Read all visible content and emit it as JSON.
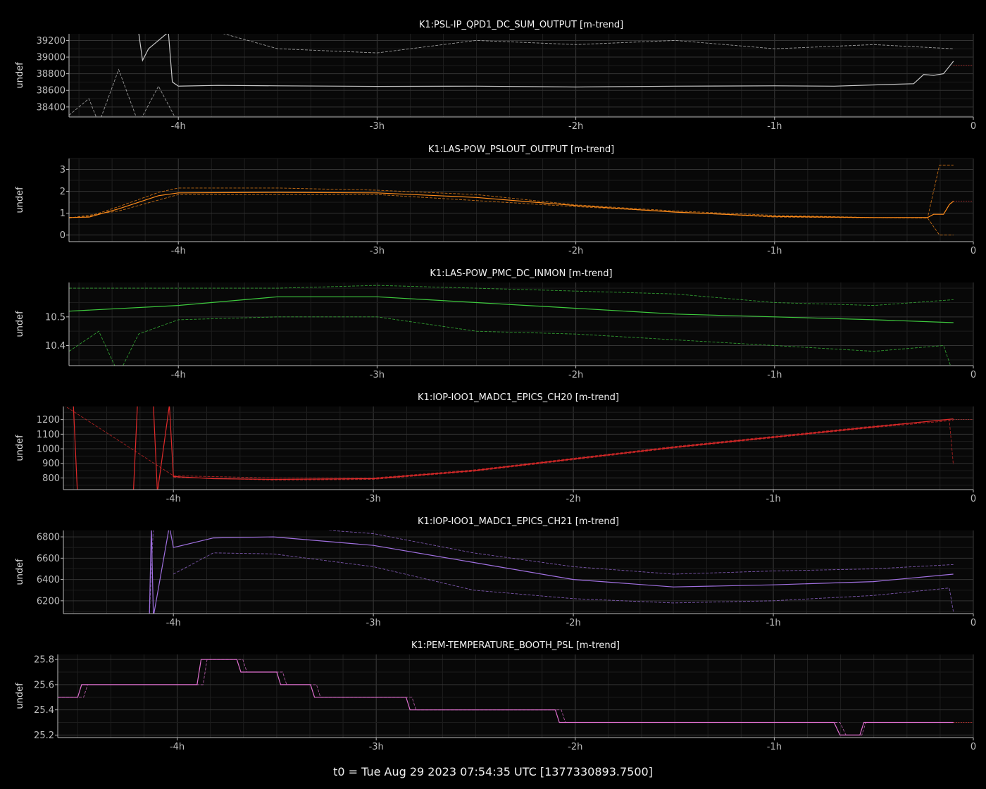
{
  "footer": "t0 = Tue Aug 29 2023 07:54:35 UTC [1377330893.7500]",
  "chart_data": [
    {
      "type": "line",
      "title": "K1:PSL-IP_QPD1_DC_SUM_OUTPUT [m-trend]",
      "ylabel": "undef",
      "color": "#c8c8c8",
      "x_ticks": [
        "-4h",
        "-3h",
        "-2h",
        "-1h",
        "0"
      ],
      "xlim": [
        -4.55,
        0
      ],
      "ylim": [
        38280,
        39280
      ],
      "y_ticks": [
        38400,
        38600,
        38800,
        39000,
        39200
      ],
      "grid": true,
      "series": [
        {
          "style": "solid",
          "x": [
            -4.55,
            -4.2,
            -4.18,
            -4.15,
            -4.05,
            -4.03,
            -4.0,
            -3.8,
            -3.5,
            -3.0,
            -2.5,
            -2.0,
            -1.5,
            -1.0,
            -0.7,
            -0.3,
            -0.25,
            -0.2,
            -0.15,
            -0.1
          ],
          "y": [
            39400,
            39300,
            38960,
            39100,
            39300,
            38700,
            38650,
            38660,
            38655,
            38648,
            38650,
            38640,
            38650,
            38655,
            38650,
            38680,
            38790,
            38780,
            38800,
            38950
          ]
        },
        {
          "style": "dashed",
          "x": [
            -4.55,
            -4.4,
            -4.3,
            -4.2,
            -4.0,
            -3.8,
            -3.5,
            -3.0,
            -2.5,
            -2.0,
            -1.5,
            -1.0,
            -0.5,
            -0.1
          ],
          "y": [
            39400,
            39300,
            39350,
            39350,
            39400,
            39300,
            39100,
            39050,
            39200,
            39150,
            39200,
            39100,
            39150,
            39100
          ]
        },
        {
          "style": "dashed",
          "x": [
            -4.55,
            -4.45,
            -4.4,
            -4.3,
            -4.2,
            -4.1,
            -4.0,
            -3.5,
            -3.0,
            -2.0,
            -1.5,
            -1.0,
            -0.5,
            -0.1
          ],
          "y": [
            38300,
            38500,
            38200,
            38850,
            38200,
            38650,
            38200,
            38200,
            38200,
            38200,
            38200,
            38220,
            38260,
            38240
          ]
        },
        {
          "style": "dotted",
          "color": "#d03030",
          "x": [
            -0.1,
            0
          ],
          "y": [
            38900,
            38900
          ]
        }
      ]
    },
    {
      "type": "line",
      "title": "K1:LAS-POW_PSLOUT_OUTPUT [m-trend]",
      "ylabel": "undef",
      "color": "#ff8c1a",
      "x_ticks": [
        "-4h",
        "-3h",
        "-2h",
        "-1h",
        "0"
      ],
      "xlim": [
        -4.55,
        0
      ],
      "ylim": [
        -0.3,
        3.5
      ],
      "y_ticks": [
        0,
        1,
        2,
        3
      ],
      "grid": true,
      "series": [
        {
          "style": "solid",
          "x": [
            -4.55,
            -4.45,
            -4.3,
            -4.1,
            -4.0,
            -3.5,
            -3.0,
            -2.5,
            -2.0,
            -1.5,
            -1.0,
            -0.5,
            -0.23,
            -0.2,
            -0.15,
            -0.12,
            -0.1
          ],
          "y": [
            0.8,
            0.82,
            1.2,
            1.8,
            1.93,
            1.95,
            1.93,
            1.72,
            1.35,
            1.05,
            0.85,
            0.8,
            0.8,
            0.95,
            0.95,
            1.4,
            1.55
          ]
        },
        {
          "style": "dashed",
          "x": [
            -4.55,
            -4.45,
            -4.3,
            -4.1,
            -4.0,
            -3.5,
            -3.0,
            -2.5,
            -2.0,
            -1.5,
            -1.0,
            -0.5,
            -0.23,
            -0.17,
            -0.15,
            -0.1
          ],
          "y": [
            0.8,
            0.85,
            1.3,
            1.95,
            2.15,
            2.15,
            2.05,
            1.85,
            1.38,
            1.1,
            0.9,
            0.8,
            0.8,
            3.2,
            3.2,
            3.2
          ]
        },
        {
          "style": "dashed",
          "x": [
            -4.55,
            -4.3,
            -4.0,
            -3.0,
            -2.0,
            -1.0,
            -0.23,
            -0.17,
            -0.1
          ],
          "y": [
            0.78,
            1.1,
            1.85,
            1.85,
            1.3,
            0.82,
            0.78,
            0,
            0
          ]
        },
        {
          "style": "dotted",
          "color": "#d03030",
          "x": [
            -0.1,
            0
          ],
          "y": [
            1.55,
            1.55
          ]
        }
      ]
    },
    {
      "type": "line",
      "title": "K1:LAS-POW_PMC_DC_INMON [m-trend]",
      "ylabel": "undef",
      "color": "#3ec93e",
      "x_ticks": [
        "-4h",
        "-3h",
        "-2h",
        "-1h",
        "0"
      ],
      "xlim": [
        -4.55,
        0
      ],
      "ylim": [
        10.33,
        10.62
      ],
      "y_ticks": [
        10.4,
        10.5
      ],
      "grid": true,
      "series": [
        {
          "style": "solid",
          "x": [
            -4.55,
            -4.0,
            -3.5,
            -3.0,
            -2.5,
            -2.0,
            -1.5,
            -1.0,
            -0.5,
            -0.1
          ],
          "y": [
            10.52,
            10.54,
            10.57,
            10.57,
            10.55,
            10.53,
            10.51,
            10.5,
            10.49,
            10.48
          ]
        },
        {
          "style": "dashed",
          "x": [
            -4.55,
            -4.0,
            -3.5,
            -3.0,
            -2.5,
            -2.0,
            -1.5,
            -1.0,
            -0.5,
            -0.1
          ],
          "y": [
            10.6,
            10.6,
            10.6,
            10.61,
            10.6,
            10.59,
            10.58,
            10.55,
            10.54,
            10.56
          ]
        },
        {
          "style": "dashed",
          "x": [
            -4.55,
            -4.4,
            -4.3,
            -4.2,
            -4.0,
            -3.5,
            -3.0,
            -2.5,
            -2.0,
            -1.5,
            -1.0,
            -0.5,
            -0.15,
            -0.1
          ],
          "y": [
            10.38,
            10.45,
            10.3,
            10.44,
            10.49,
            10.5,
            10.5,
            10.45,
            10.44,
            10.42,
            10.4,
            10.38,
            10.4,
            10.3
          ]
        }
      ]
    },
    {
      "type": "line",
      "title": "K1:IOP-IOO1_MADC1_EPICS_CH20 [m-trend]",
      "ylabel": "undef",
      "color": "#e02a2a",
      "x_ticks": [
        "-4h",
        "-3h",
        "-2h",
        "-1h",
        "0"
      ],
      "xlim": [
        -4.55,
        0
      ],
      "ylim": [
        720,
        1290
      ],
      "y_ticks": [
        800,
        900,
        1000,
        1100,
        1200
      ],
      "grid": true,
      "series": [
        {
          "style": "solid",
          "x": [
            -4.55,
            -4.5,
            -4.48,
            -4.2,
            -4.18,
            -4.1,
            -4.08,
            -4.02,
            -4.0,
            -3.8,
            -3.5,
            -3.0,
            -2.5,
            -2.0,
            -1.5,
            -1.0,
            -0.5,
            -0.1
          ],
          "y": [
            1300,
            1300,
            700,
            700,
            1300,
            1300,
            700,
            1300,
            810,
            795,
            790,
            795,
            850,
            930,
            1010,
            1080,
            1150,
            1205
          ]
        },
        {
          "style": "dashed",
          "x": [
            -4.55,
            -4.0,
            -3.5,
            -3.0,
            -2.5,
            -2.0,
            -1.5,
            -1.0,
            -0.5,
            -0.12,
            -0.1
          ],
          "y": [
            1300,
            815,
            800,
            800,
            855,
            935,
            1015,
            1085,
            1155,
            1200,
            890
          ]
        },
        {
          "style": "dashed",
          "x": [
            -4.0,
            -3.5,
            -3.0,
            -2.5,
            -2.0,
            -1.5,
            -1.0,
            -0.5,
            -0.1
          ],
          "y": [
            805,
            785,
            790,
            845,
            925,
            1005,
            1075,
            1145,
            1195
          ]
        },
        {
          "style": "dotted",
          "color": "#d03030",
          "x": [
            -0.1,
            0
          ],
          "y": [
            1200,
            1200
          ]
        }
      ]
    },
    {
      "type": "line",
      "title": "K1:IOP-IOO1_MADC1_EPICS_CH21 [m-trend]",
      "ylabel": "undef",
      "color": "#a070e0",
      "x_ticks": [
        "-4h",
        "-3h",
        "-2h",
        "-1h",
        "0"
      ],
      "xlim": [
        -4.55,
        0
      ],
      "ylim": [
        6080,
        6860
      ],
      "y_ticks": [
        6200,
        6400,
        6600,
        6800
      ],
      "grid": true,
      "series": [
        {
          "style": "solid",
          "x": [
            -4.12,
            -4.11,
            -4.1,
            -4.02,
            -4.0,
            -3.8,
            -3.5,
            -3.0,
            -2.5,
            -2.0,
            -1.5,
            -1.0,
            -0.5,
            -0.1
          ],
          "y": [
            6050,
            6900,
            6050,
            6900,
            6700,
            6790,
            6800,
            6720,
            6560,
            6400,
            6330,
            6350,
            6380,
            6450
          ]
        },
        {
          "style": "dashed",
          "x": [
            -4.12,
            -4.1,
            -4.0,
            -3.5,
            -3.0,
            -2.5,
            -2.0,
            -1.5,
            -1.0,
            -0.5,
            -0.1
          ],
          "y": [
            6050,
            6900,
            6900,
            6900,
            6830,
            6650,
            6520,
            6450,
            6480,
            6500,
            6540
          ]
        },
        {
          "style": "dashed",
          "x": [
            -4.0,
            -3.8,
            -3.5,
            -3.0,
            -2.5,
            -2.0,
            -1.5,
            -1.0,
            -0.5,
            -0.12,
            -0.1
          ],
          "y": [
            6450,
            6650,
            6640,
            6520,
            6300,
            6220,
            6180,
            6200,
            6250,
            6320,
            6100
          ]
        }
      ]
    },
    {
      "type": "line",
      "title": "K1:PEM-TEMPERATURE_BOOTH_PSL [m-trend]",
      "ylabel": "undef",
      "color": "#e070d0",
      "x_ticks": [
        "-4h",
        "-3h",
        "-2h",
        "-1h",
        "0"
      ],
      "xlim": [
        -4.6,
        0
      ],
      "ylim": [
        25.18,
        25.84
      ],
      "y_ticks": [
        25.2,
        25.4,
        25.6,
        25.8
      ],
      "grid": true,
      "series": [
        {
          "style": "solid",
          "x": [
            -4.6,
            -4.5,
            -4.48,
            -3.9,
            -3.88,
            -3.7,
            -3.68,
            -3.5,
            -3.48,
            -3.33,
            -3.31,
            -2.85,
            -2.83,
            -2.1,
            -2.08,
            -0.7,
            -0.67,
            -0.57,
            -0.55,
            -0.1
          ],
          "y": [
            25.5,
            25.5,
            25.6,
            25.6,
            25.8,
            25.8,
            25.7,
            25.7,
            25.6,
            25.6,
            25.5,
            25.5,
            25.4,
            25.4,
            25.3,
            25.3,
            25.2,
            25.2,
            25.3,
            25.3
          ]
        },
        {
          "style": "dashed",
          "x": [
            -4.6,
            -4.47,
            -4.45,
            -3.87,
            -3.85,
            -3.67,
            -3.65,
            -3.47,
            -3.45,
            -3.3,
            -3.28,
            -2.82,
            -2.8,
            -2.07,
            -2.05,
            -0.67,
            -0.64,
            -0.56,
            -0.54,
            -0.1
          ],
          "y": [
            25.5,
            25.5,
            25.6,
            25.6,
            25.8,
            25.8,
            25.7,
            25.7,
            25.6,
            25.6,
            25.5,
            25.5,
            25.4,
            25.4,
            25.3,
            25.3,
            25.2,
            25.2,
            25.3,
            25.3
          ]
        },
        {
          "style": "dotted",
          "color": "#d03030",
          "x": [
            -0.1,
            0
          ],
          "y": [
            25.3,
            25.3
          ]
        }
      ]
    }
  ]
}
